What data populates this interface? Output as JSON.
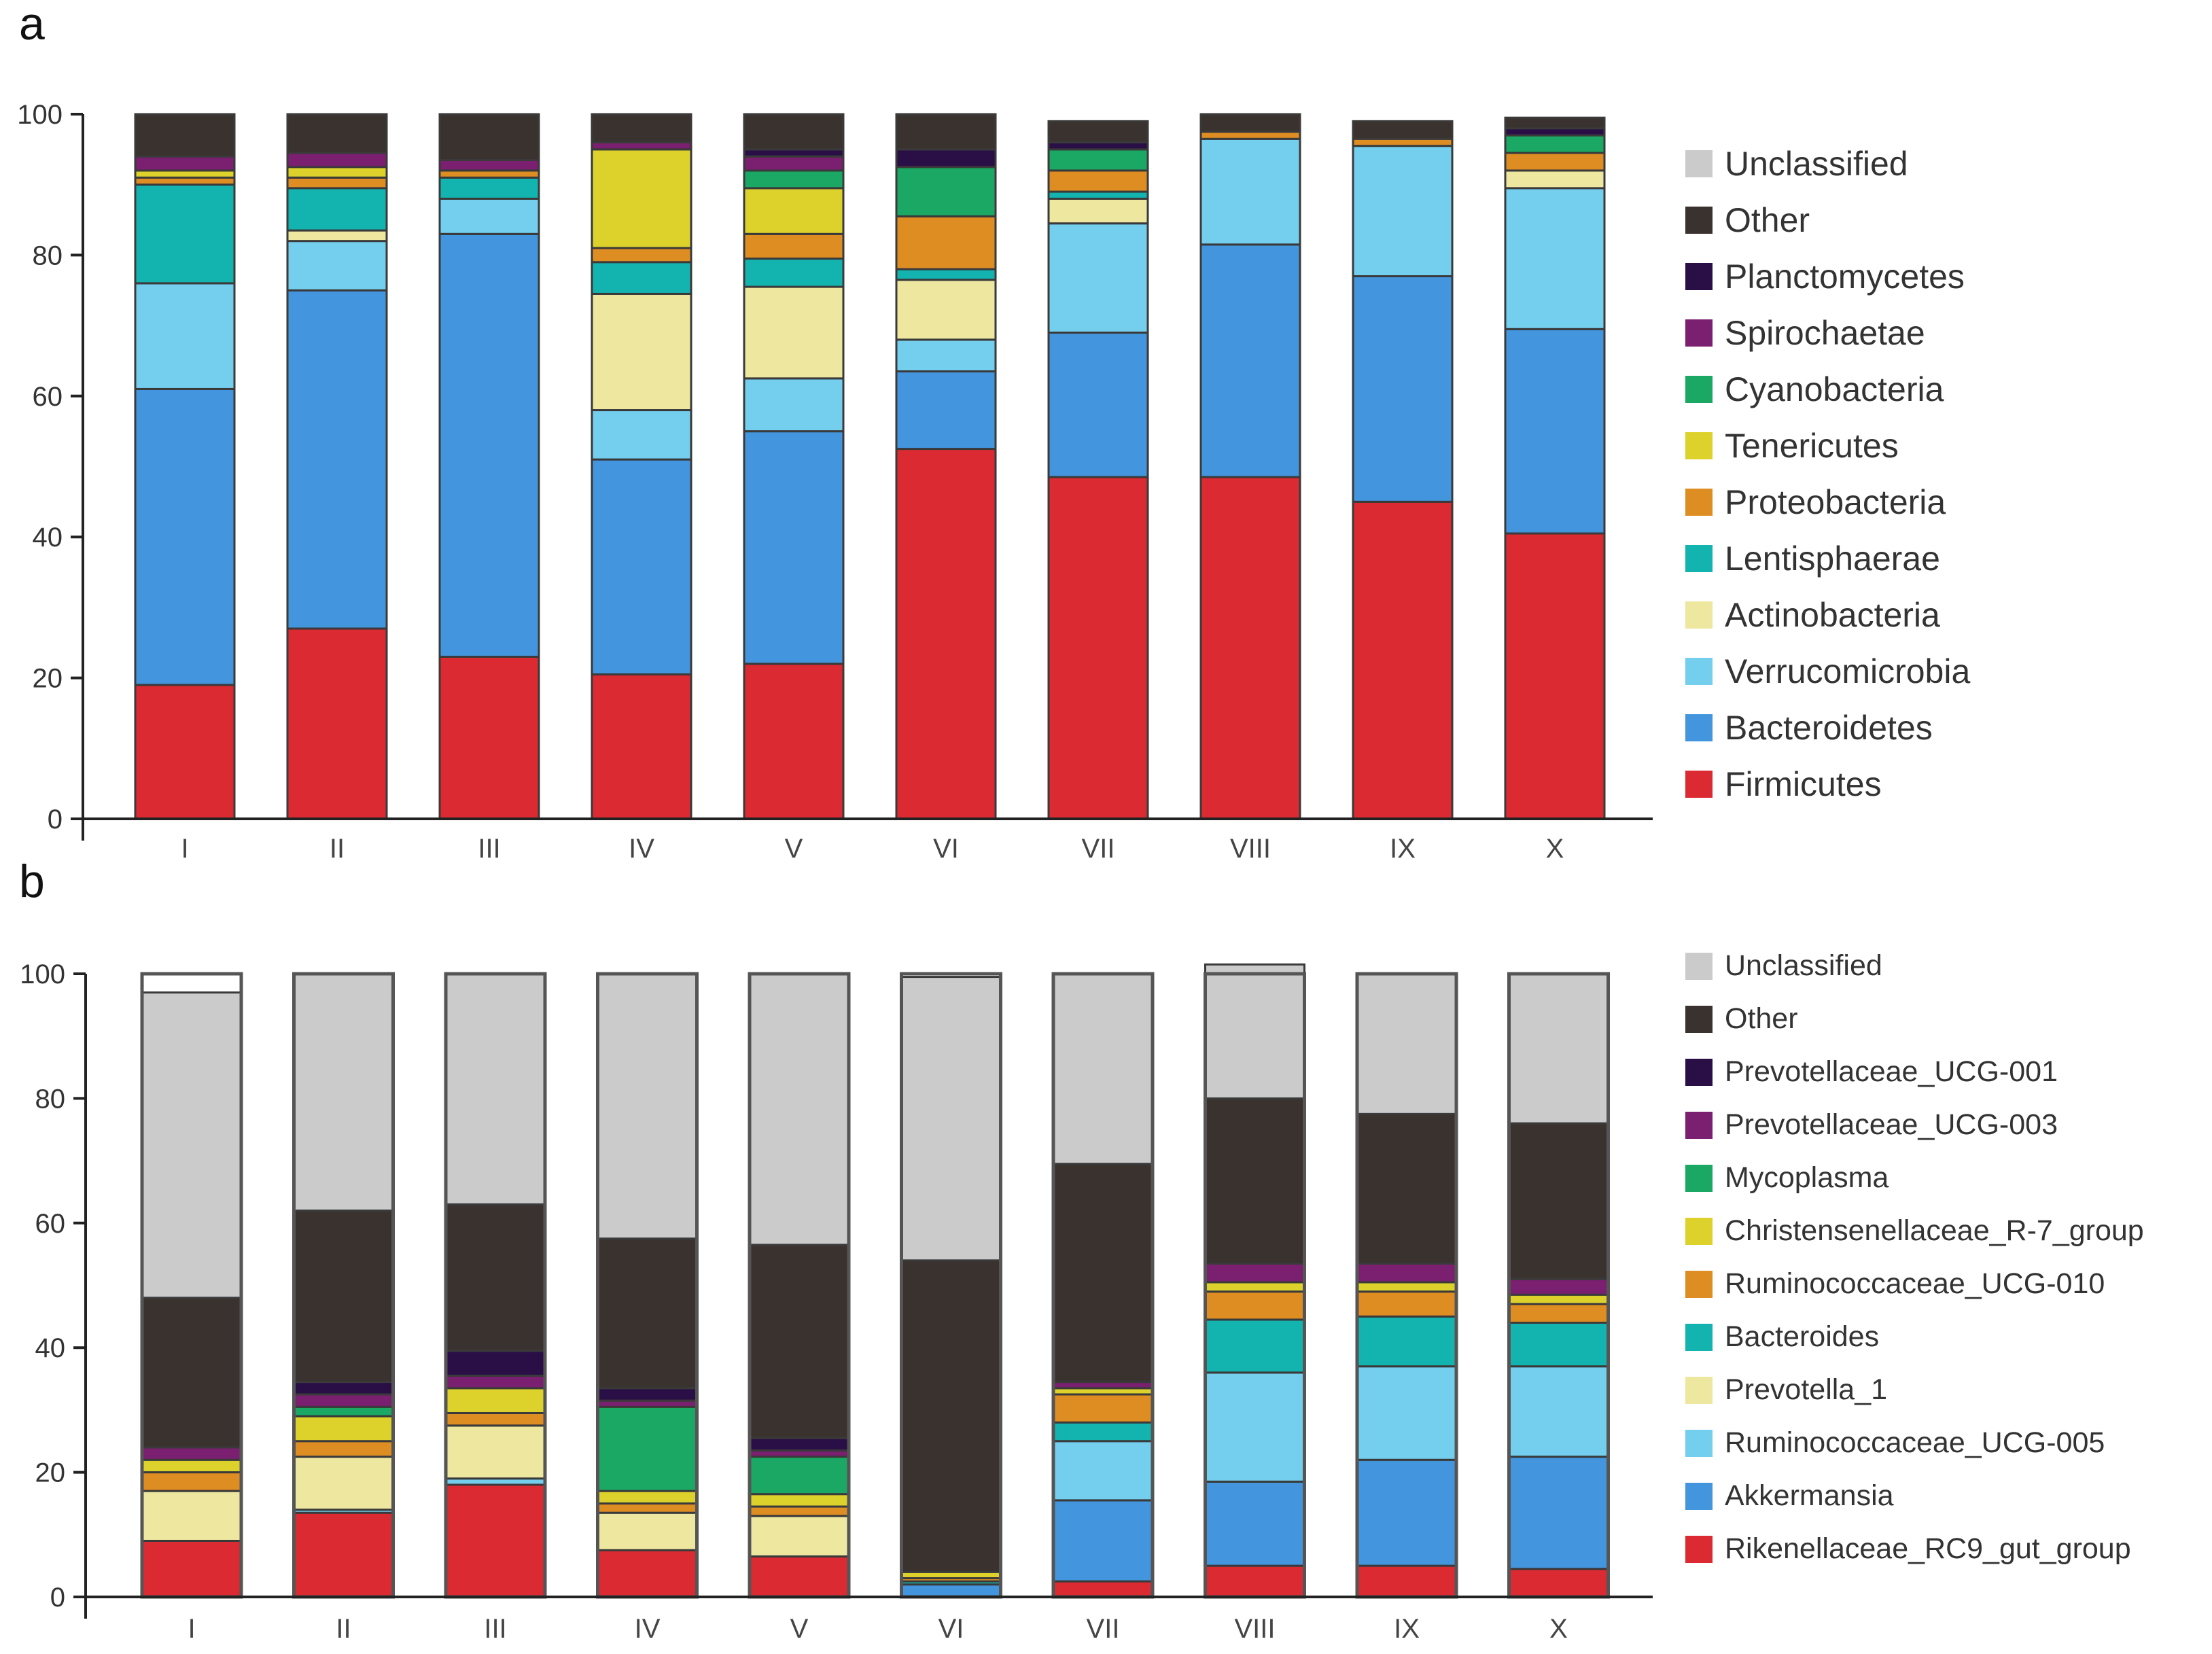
{
  "colors": {
    "Unclassified": "#cbcbcb",
    "Other": "#3a322f",
    "dark_purple": "#2a0f47",
    "magenta": "#7b1f70",
    "green": "#1aa864",
    "yellow": "#ddd22c",
    "orange": "#de8d23",
    "teal": "#13b4b0",
    "pale_yellow": "#ede79f",
    "light_blue": "#74cfee",
    "blue": "#4395dd",
    "red": "#dc2a33"
  },
  "chart_data": [
    {
      "panel_label": "a",
      "type": "bar",
      "stacked": true,
      "categories": [
        "I",
        "II",
        "III",
        "IV",
        "V",
        "VI",
        "VII",
        "VIII",
        "IX",
        "X"
      ],
      "ylim": [
        0,
        100
      ],
      "yticks": [
        0,
        20,
        40,
        60,
        80,
        100
      ],
      "grid": false,
      "legend_position": "right",
      "legend": [
        "Unclassified",
        "Other",
        "Planctomycetes",
        "Spirochaetae",
        "Cyanobacteria",
        "Tenericutes",
        "Proteobacteria",
        "Lentisphaerae",
        "Actinobacteria",
        "Verrucomicrobia",
        "Bacteroidetes",
        "Firmicutes"
      ],
      "series": [
        {
          "name": "Firmicutes",
          "color_key": "red",
          "values": [
            19,
            27,
            23,
            20.5,
            22,
            52.5,
            48.5,
            48.5,
            45,
            40.5
          ]
        },
        {
          "name": "Bacteroidetes",
          "color_key": "blue",
          "values": [
            42,
            48,
            60,
            30.5,
            33,
            11,
            20.5,
            33,
            32,
            29
          ]
        },
        {
          "name": "Verrucomicrobia",
          "color_key": "light_blue",
          "values": [
            15,
            7,
            5,
            7,
            7.5,
            4.5,
            15.5,
            15,
            18.5,
            20
          ]
        },
        {
          "name": "Actinobacteria",
          "color_key": "pale_yellow",
          "values": [
            0,
            1.5,
            0,
            16.5,
            13,
            8.5,
            3.5,
            0,
            0,
            2.5
          ]
        },
        {
          "name": "Lentisphaerae",
          "color_key": "teal",
          "values": [
            14,
            6,
            3,
            4.5,
            4,
            1.5,
            1,
            0,
            0,
            0
          ]
        },
        {
          "name": "Proteobacteria",
          "color_key": "orange",
          "values": [
            1,
            1.5,
            1,
            2,
            3.5,
            7.5,
            3,
            1,
            1,
            2.5
          ]
        },
        {
          "name": "Tenericutes",
          "color_key": "yellow",
          "values": [
            1,
            1.5,
            0,
            14,
            6.5,
            0,
            0,
            0,
            0,
            0
          ]
        },
        {
          "name": "Cyanobacteria",
          "color_key": "green",
          "values": [
            0,
            0,
            0,
            0,
            2.5,
            7,
            3,
            0,
            0,
            2.5
          ]
        },
        {
          "name": "Spirochaetae",
          "color_key": "magenta",
          "values": [
            2,
            2,
            1.5,
            1,
            2,
            0,
            0,
            0,
            0,
            0
          ]
        },
        {
          "name": "Planctomycetes",
          "color_key": "dark_purple",
          "values": [
            0,
            0,
            0,
            0,
            1,
            2.5,
            1,
            0,
            0,
            1
          ]
        },
        {
          "name": "Other",
          "color_key": "Other",
          "values": [
            6,
            5.5,
            6.5,
            4,
            5,
            5,
            3,
            2.5,
            2.5,
            1.5
          ]
        }
      ]
    },
    {
      "panel_label": "b",
      "type": "bar",
      "stacked": true,
      "categories": [
        "I",
        "II",
        "III",
        "IV",
        "V",
        "VI",
        "VII",
        "VIII",
        "IX",
        "X"
      ],
      "ylim": [
        0,
        100
      ],
      "yticks": [
        0,
        20,
        40,
        60,
        80,
        100
      ],
      "grid": false,
      "legend_position": "right",
      "legend": [
        "Unclassified",
        "Other",
        "Prevotellaceae_UCG-001",
        "Prevotellaceae_UCG-003",
        "Mycoplasma",
        "Christensenellaceae_R-7_group",
        "Ruminococcaceae_UCG-010",
        "Bacteroides",
        "Prevotella_1",
        "Ruminococcaceae_UCG-005",
        "Akkermansia",
        "Rikenellaceae_RC9_gut_group"
      ],
      "series": [
        {
          "name": "Rikenellaceae_RC9_gut_group",
          "color_key": "red",
          "values": [
            9,
            13.5,
            18,
            7.5,
            6.5,
            0,
            2.5,
            5,
            5,
            4.5
          ]
        },
        {
          "name": "Akkermansia",
          "color_key": "blue",
          "values": [
            0,
            0,
            0,
            0,
            0,
            2,
            13,
            13.5,
            17,
            18
          ]
        },
        {
          "name": "Ruminococcaceae_UCG-005",
          "color_key": "light_blue",
          "values": [
            0,
            0.5,
            1,
            0,
            0,
            0,
            9.5,
            17.5,
            15,
            14.5
          ]
        },
        {
          "name": "Prevotella_1",
          "color_key": "pale_yellow",
          "values": [
            8,
            8.5,
            8.5,
            6,
            6.5,
            0,
            0,
            0,
            0,
            0
          ]
        },
        {
          "name": "Bacteroides",
          "color_key": "teal",
          "values": [
            0,
            0,
            0,
            0,
            0,
            0.5,
            3,
            8.5,
            8,
            7
          ]
        },
        {
          "name": "Ruminococcaceae_UCG-010",
          "color_key": "orange",
          "values": [
            3,
            2.5,
            2,
            1.5,
            1.5,
            0.5,
            4.5,
            4.5,
            4,
            3
          ]
        },
        {
          "name": "Christensenellaceae_R-7_group",
          "color_key": "yellow",
          "values": [
            2,
            4,
            4,
            2,
            2,
            1,
            1,
            1.5,
            1.5,
            1.5
          ]
        },
        {
          "name": "Mycoplasma",
          "color_key": "green",
          "values": [
            0,
            1.5,
            0,
            13.5,
            6,
            0,
            0,
            0,
            0,
            0
          ]
        },
        {
          "name": "Prevotellaceae_UCG-003",
          "color_key": "magenta",
          "values": [
            2,
            2,
            2,
            1,
            1,
            0,
            1,
            3,
            3,
            2.5
          ]
        },
        {
          "name": "Prevotellaceae_UCG-001",
          "color_key": "dark_purple",
          "values": [
            0,
            2,
            4,
            2,
            2,
            0,
            0,
            0,
            0,
            0
          ]
        },
        {
          "name": "Other",
          "color_key": "Other",
          "values": [
            24,
            27.5,
            23.5,
            24,
            31,
            50,
            35,
            26.5,
            24,
            25
          ]
        },
        {
          "name": "Unclassified",
          "color_key": "Unclassified",
          "values": [
            49,
            38,
            37,
            42.5,
            43.5,
            45.5,
            30.5,
            21.5,
            22.5,
            24
          ]
        }
      ]
    }
  ]
}
